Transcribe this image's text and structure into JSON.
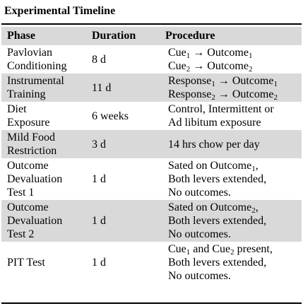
{
  "title": "Experimental Timeline",
  "headers": {
    "phase": "Phase",
    "duration": "Duration",
    "procedure": "Procedure"
  },
  "rows": [
    {
      "phase": [
        "Pavlovian",
        "Conditioning"
      ],
      "duration": "8 d",
      "procedure": [
        [
          {
            "t": "Cue"
          },
          {
            "s": "1"
          },
          {
            "t": " → Outcome"
          },
          {
            "s": "1"
          }
        ],
        [
          {
            "t": "Cue"
          },
          {
            "s": "2"
          },
          {
            "t": " → Outcome"
          },
          {
            "s": "2"
          }
        ]
      ],
      "shaded": false
    },
    {
      "phase": [
        "Instrumental",
        "Training"
      ],
      "duration": "11 d",
      "procedure": [
        [
          {
            "t": "Response"
          },
          {
            "s": "1"
          },
          {
            "t": " → Outcome"
          },
          {
            "s": "1"
          }
        ],
        [
          {
            "t": "Response"
          },
          {
            "s": "2"
          },
          {
            "t": " → Outcome"
          },
          {
            "s": "2"
          }
        ]
      ],
      "shaded": true
    },
    {
      "phase": [
        "Diet",
        "Exposure"
      ],
      "duration": "6 weeks",
      "procedure": [
        [
          {
            "t": "Control, Intermittent or"
          }
        ],
        [
          {
            "t": "Ad libitum exposure"
          }
        ]
      ],
      "shaded": false
    },
    {
      "phase": [
        "Mild Food",
        "Restriction"
      ],
      "duration": "3 d",
      "procedure": [
        [
          {
            "t": "14 hrs chow per day"
          }
        ]
      ],
      "shaded": true
    },
    {
      "phase": [
        "Outcome",
        "Devaluation",
        "Test 1"
      ],
      "duration": "1 d",
      "procedure": [
        [
          {
            "t": "Sated on Outcome"
          },
          {
            "s": "1"
          },
          {
            "t": ","
          }
        ],
        [
          {
            "t": "Both levers extended,"
          }
        ],
        [
          {
            "t": "No outcomes."
          }
        ]
      ],
      "shaded": false
    },
    {
      "phase": [
        "Outcome",
        "Devaluation",
        "Test 2"
      ],
      "duration": "1 d",
      "procedure": [
        [
          {
            "t": "Sated on Outcome"
          },
          {
            "s": "2"
          },
          {
            "t": ","
          }
        ],
        [
          {
            "t": "Both levers extended,"
          }
        ],
        [
          {
            "t": "No outcomes."
          }
        ]
      ],
      "shaded": true
    },
    {
      "phase": [
        "PIT Test"
      ],
      "duration": "1 d",
      "procedure": [
        [
          {
            "t": "Cue"
          },
          {
            "s": "1"
          },
          {
            "t": " and Cue"
          },
          {
            "s": "2"
          },
          {
            "t": " present,"
          }
        ],
        [
          {
            "t": "Both levers extended,"
          }
        ],
        [
          {
            "t": "No outcomes."
          }
        ]
      ],
      "shaded": false
    }
  ]
}
